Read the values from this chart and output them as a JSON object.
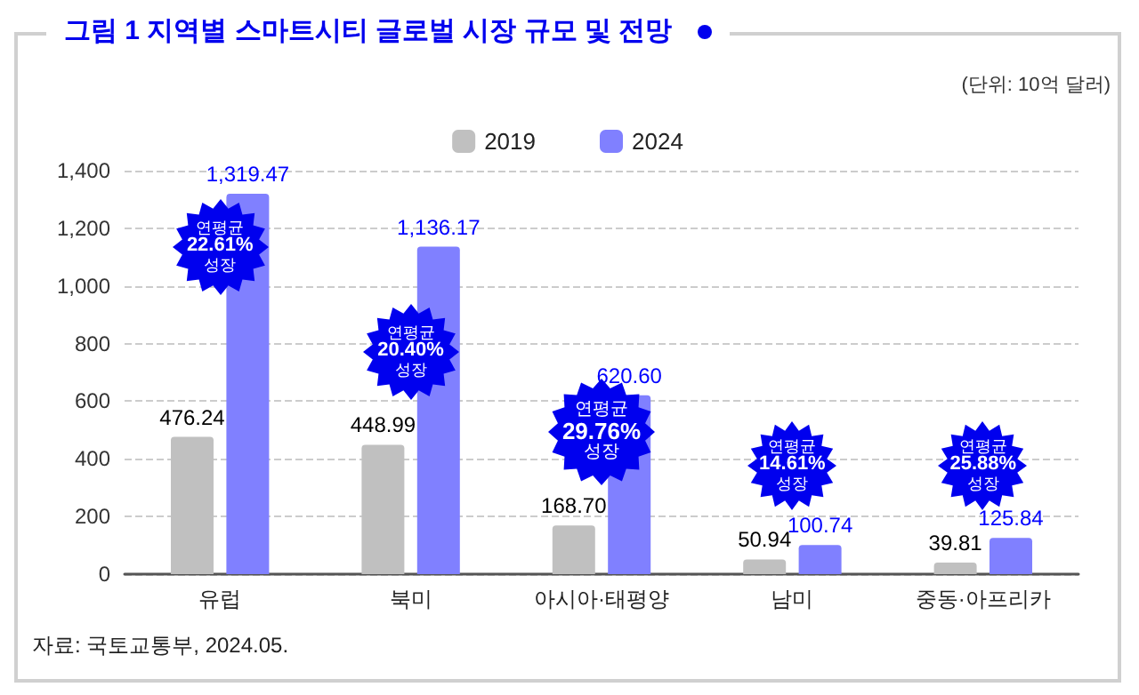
{
  "chart_data": {
    "type": "bar",
    "title": "그림 1 지역별 스마트시티 글로벌 시장 규모 및 전망",
    "ylabel": "(단위: 10억 달러)",
    "categories": [
      "유럽",
      "북미",
      "아시아·태평양",
      "남미",
      "중동·아프리카"
    ],
    "series": [
      {
        "name": "2019",
        "color": "#c0c0c0",
        "values": [
          476.24,
          448.99,
          168.7,
          50.94,
          39.81
        ],
        "value_labels": [
          "476.24",
          "448.99",
          "168.70",
          "50.94",
          "39.81"
        ]
      },
      {
        "name": "2024",
        "color": "#8080ff",
        "values": [
          1319.47,
          1136.17,
          620.6,
          100.74,
          125.84
        ],
        "value_labels": [
          "1,319.47",
          "1,136.17",
          "620.60",
          "100.74",
          "125.84"
        ]
      }
    ],
    "ylim": [
      0,
      1400
    ],
    "yticks": [
      0,
      200,
      400,
      600,
      800,
      {
        "value": 1000,
        "label": "1,000"
      },
      {
        "value": 1200,
        "label": "1,200"
      },
      {
        "value": 1400,
        "label": "1,400"
      }
    ],
    "grid": "y",
    "legend": "top",
    "annotations": [
      "자료: 국토교통부, 2024.05.",
      "연평균\n22.61%\n성장",
      "연평균\n20.40%\n성장",
      "연평균\n29.76%\n성장",
      "연평균\n14.61%\n성장",
      "연평균\n25.88%\n성장"
    ]
  }
}
